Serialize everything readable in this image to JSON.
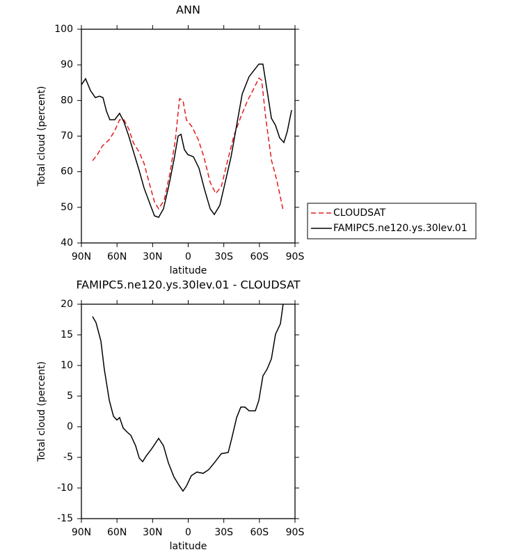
{
  "chart_data": [
    {
      "type": "line",
      "title": "ANN",
      "x_label": "latitude",
      "y_label": "Total cloud (percent)",
      "xlim": [
        90,
        -90
      ],
      "ylim": [
        40,
        100
      ],
      "xticks": [
        {
          "value": 90,
          "label": "90N"
        },
        {
          "value": 60,
          "label": "60N"
        },
        {
          "value": 30,
          "label": "30N"
        },
        0,
        {
          "value": -30,
          "label": "30S"
        },
        {
          "value": -60,
          "label": "60S"
        },
        {
          "value": -90,
          "label": "90S"
        }
      ],
      "yticks": [
        40,
        50,
        60,
        70,
        80,
        90,
        100
      ],
      "legend": "right",
      "series": [
        {
          "name": "CLOUDSAT",
          "color": "#e41a1c",
          "line_style": "dashed",
          "x": [
            80.6,
            76.5,
            72.4,
            66.5,
            61.9,
            57.8,
            54.2,
            50.1,
            46,
            41.3,
            37.2,
            32.5,
            28.4,
            24.9,
            20.2,
            15.5,
            10.8,
            7.3,
            4.4,
            1.5,
            -3.2,
            -8.5,
            -13.2,
            -18.5,
            -23.2,
            -27.9,
            -32.6,
            -38.4,
            -44.3,
            -50.1,
            -56,
            -59.5,
            -61.9,
            -65.4,
            -70.1,
            -74.8,
            -80
          ],
          "values": [
            63.1,
            64.8,
            67.2,
            69,
            71.5,
            74.6,
            74.6,
            72,
            68,
            65.5,
            62.3,
            56.4,
            51.5,
            49.6,
            52,
            59.4,
            69,
            80.5,
            80,
            74.6,
            72.6,
            69,
            64.2,
            57,
            53.9,
            55.8,
            62.3,
            70,
            75.4,
            80,
            83.8,
            86.3,
            85.7,
            75,
            63.3,
            57.4,
            49.2
          ]
        },
        {
          "name": "FAMIPC5.ne120.ys.30lev.01",
          "color": "#000000",
          "line_style": "solid",
          "x": [
            90,
            86.5,
            82.4,
            78.3,
            74.8,
            71.8,
            68.9,
            66,
            61.9,
            57.8,
            54.2,
            50.1,
            45.4,
            41.3,
            37.2,
            32.5,
            28.4,
            24.9,
            20.8,
            16.1,
            12,
            8.5,
            6.1,
            3.2,
            0.3,
            -4.4,
            -9.1,
            -13.8,
            -18.5,
            -22,
            -26.7,
            -31.4,
            -36.1,
            -40.8,
            -45.5,
            -51.3,
            -56,
            -59.5,
            -63,
            -66.5,
            -70.1,
            -73.6,
            -77.1,
            -80.6,
            -83.5,
            -87.1
          ],
          "values": [
            84.4,
            86.1,
            82.8,
            80.8,
            81.2,
            80.8,
            77,
            74.6,
            74.6,
            76.4,
            74,
            70,
            64.8,
            60.3,
            55.4,
            51.2,
            47.6,
            47.2,
            49.6,
            56.4,
            63.3,
            70,
            70.5,
            66.2,
            64.8,
            64.2,
            61,
            55,
            49.6,
            48,
            50.6,
            57.4,
            64.2,
            73,
            81.8,
            86.7,
            88.7,
            90.2,
            90.2,
            82.8,
            75,
            73,
            69.5,
            68.2,
            71.3,
            77.3
          ]
        }
      ]
    },
    {
      "type": "line",
      "title": "FAMIPC5.ne120.ys.30lev.01 - CLOUDSAT",
      "x_label": "latitude",
      "y_label": "Total cloud (percent)",
      "xlim": [
        90,
        -90
      ],
      "ylim": [
        -15,
        20
      ],
      "xticks": [
        {
          "value": 90,
          "label": "90N"
        },
        {
          "value": 60,
          "label": "60N"
        },
        {
          "value": 30,
          "label": "30N"
        },
        0,
        {
          "value": -30,
          "label": "30S"
        },
        {
          "value": -60,
          "label": "60S"
        },
        {
          "value": -90,
          "label": "90S"
        }
      ],
      "yticks": [
        -15,
        -10,
        -5,
        0,
        5,
        10,
        15,
        20
      ],
      "series": [
        {
          "color": "#000000",
          "line_style": "solid",
          "x": [
            80.6,
            77.7,
            73.6,
            70.7,
            66.5,
            63,
            60.1,
            57.8,
            54.8,
            51.9,
            48.4,
            44.3,
            41.3,
            38.4,
            35.5,
            30.8,
            24.9,
            20.8,
            16.7,
            12,
            7.9,
            4.4,
            1.5,
            -2.6,
            -7.3,
            -12.6,
            -17.3,
            -22,
            -27.9,
            -33.7,
            -36.7,
            -40.8,
            -44.3,
            -47.8,
            -51.3,
            -56.6,
            -59.5,
            -63,
            -66.5,
            -70.1,
            -73.6,
            -77.7,
            -80
          ],
          "values": [
            18,
            17,
            14,
            9.4,
            4.3,
            1.7,
            1.1,
            1.5,
            -0.2,
            -0.8,
            -1.4,
            -3.1,
            -5.1,
            -5.7,
            -4.8,
            -3.6,
            -1.9,
            -3.1,
            -5.9,
            -8.2,
            -9.5,
            -10.5,
            -9.7,
            -8,
            -7.4,
            -7.6,
            -7,
            -5.9,
            -4.4,
            -4.2,
            -1.9,
            1.5,
            3.2,
            3.2,
            2.6,
            2.6,
            4.3,
            8.3,
            9.4,
            11.1,
            15.1,
            16.8,
            20
          ]
        }
      ]
    }
  ]
}
